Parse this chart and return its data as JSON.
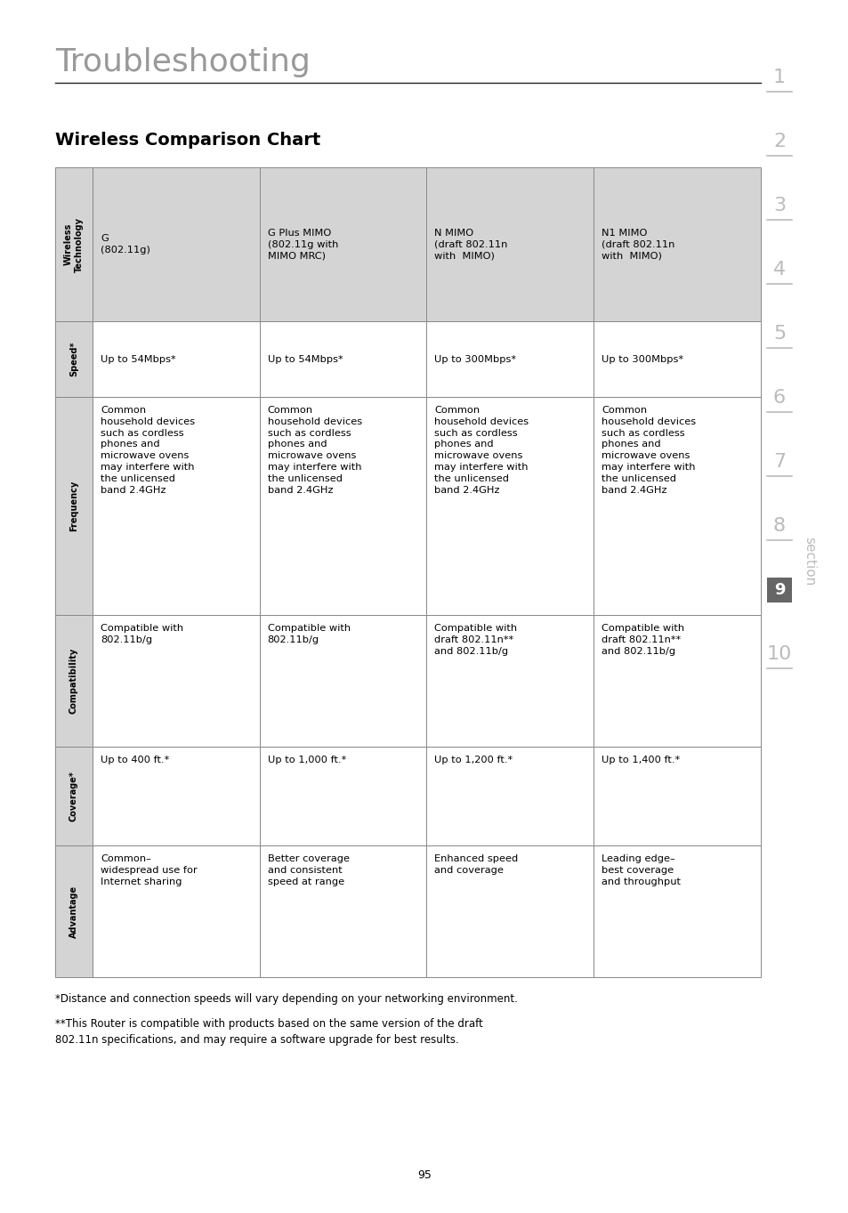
{
  "page_title": "Troubleshooting",
  "section_title": "Wireless Comparison Chart",
  "bg_color": "#ffffff",
  "header_bg": "#d4d4d4",
  "cell_bg": "#ffffff",
  "border_color": "#888888",
  "title_color": "#999999",
  "section_title_color": "#000000",
  "row_labels": [
    "Wireless\nTechnology",
    "Speed*",
    "Frequency",
    "Compatibility",
    "Coverage*",
    "Advantage"
  ],
  "table_data": [
    [
      "G\n(802.11g)",
      "G Plus MIMO\n(802.11g with\nMIMO MRC)",
      "N MIMO\n(draft 802.11n\nwith  MIMO)",
      "N1 MIMO\n(draft 802.11n\nwith  MIMO)"
    ],
    [
      "Up to 54Mbps*",
      "Up to 54Mbps*",
      "Up to 300Mbps*",
      "Up to 300Mbps*"
    ],
    [
      "Common\nhousehold devices\nsuch as cordless\nphones and\nmicrowave ovens\nmay interfere with\nthe unlicensed\nband 2.4GHz",
      "Common\nhousehold devices\nsuch as cordless\nphones and\nmicrowave ovens\nmay interfere with\nthe unlicensed\nband 2.4GHz",
      "Common\nhousehold devices\nsuch as cordless\nphones and\nmicrowave ovens\nmay interfere with\nthe unlicensed\nband 2.4GHz",
      "Common\nhousehold devices\nsuch as cordless\nphones and\nmicrowave ovens\nmay interfere with\nthe unlicensed\nband 2.4GHz"
    ],
    [
      "Compatible with\n802.11b/g",
      "Compatible with\n802.11b/g",
      "Compatible with\ndraft 802.11n**\nand 802.11b/g",
      "Compatible with\ndraft 802.11n**\nand 802.11b/g"
    ],
    [
      "Up to 400 ft.*",
      "Up to 1,000 ft.*",
      "Up to 1,200 ft.*",
      "Up to 1,400 ft.*"
    ],
    [
      "Common–\nwidespread use for\nInternet sharing",
      "Better coverage\nand consistent\nspeed at range",
      "Enhanced speed\nand coverage",
      "Leading edge–\nbest coverage\nand throughput"
    ]
  ],
  "footnote1": "*Distance and connection speeds will vary depending on your networking environment.",
  "footnote2": "**This Router is compatible with products based on the same version of the draft\n802.11n specifications, and may require a software upgrade for best results.",
  "page_number": "95",
  "side_numbers": [
    "1",
    "2",
    "3",
    "4",
    "5",
    "6",
    "7",
    "8",
    "9",
    "10"
  ],
  "section_label": "section",
  "side_num_color": "#bbbbbb",
  "side_box_color": "#666666"
}
